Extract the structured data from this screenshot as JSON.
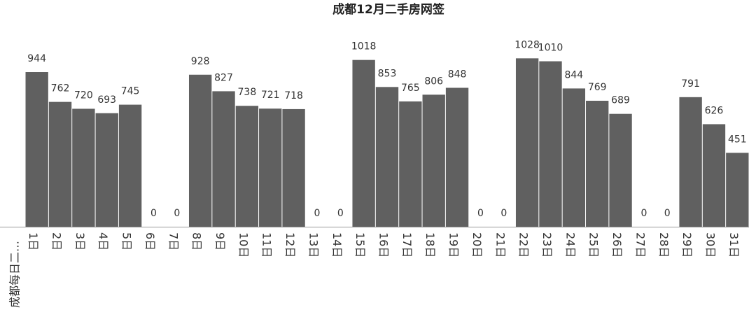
{
  "chart_data": {
    "type": "bar",
    "title": "成都12月二手房网签",
    "y_label": "成都每日二…",
    "categories": [
      "1日",
      "2日",
      "3日",
      "4日",
      "5日",
      "6日",
      "7日",
      "8日",
      "9日",
      "10日",
      "11日",
      "12日",
      "13日",
      "14日",
      "15日",
      "16日",
      "17日",
      "18日",
      "19日",
      "20日",
      "21日",
      "22日",
      "23日",
      "24日",
      "25日",
      "26日",
      "27日",
      "28日",
      "29日",
      "30日",
      "31日"
    ],
    "values": [
      944,
      762,
      720,
      693,
      745,
      0,
      0,
      928,
      827,
      738,
      721,
      718,
      0,
      0,
      1018,
      853,
      765,
      806,
      848,
      0,
      0,
      1028,
      1010,
      844,
      769,
      689,
      0,
      0,
      791,
      626,
      451
    ],
    "color": "#606060"
  }
}
